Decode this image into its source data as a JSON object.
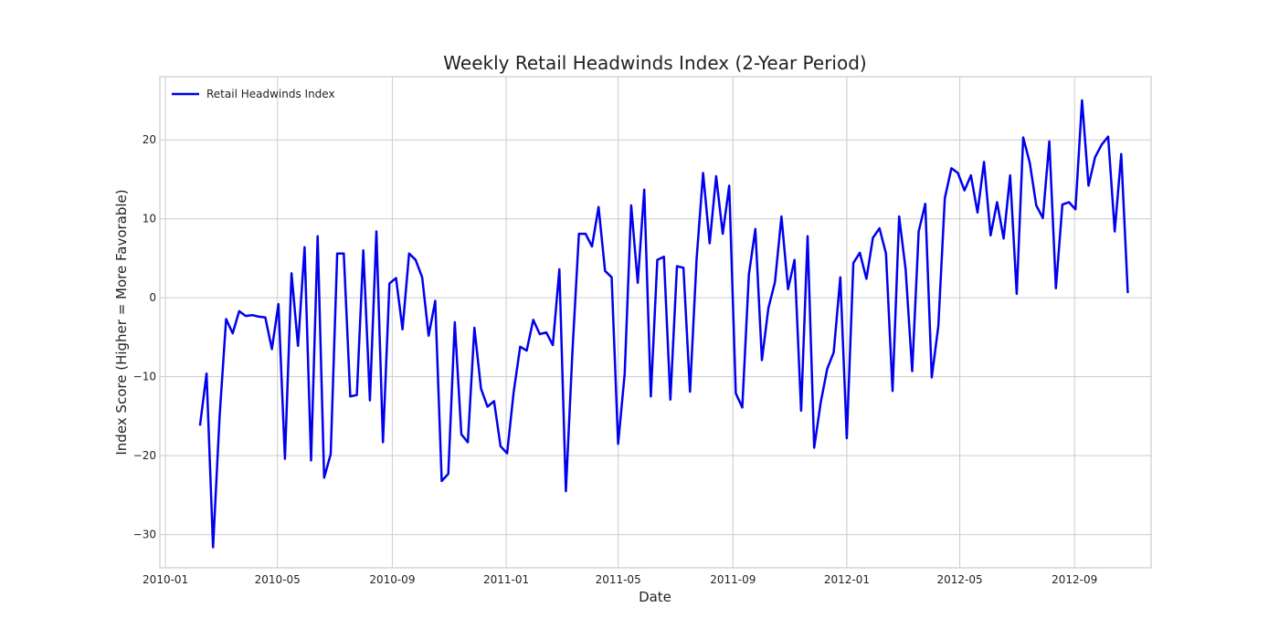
{
  "chart_data": {
    "type": "line",
    "title": "Weekly Retail Headwinds Index (2-Year Period)",
    "xlabel": "Date",
    "ylabel": "Index Score (Higher = More Favorable)",
    "xlim": [
      "2009-12-26",
      "2012-11-22"
    ],
    "ylim": [
      -34.2,
      28.0
    ],
    "x_ticks": [
      "2010-01",
      "2010-05",
      "2010-09",
      "2011-01",
      "2011-05",
      "2011-09",
      "2012-01",
      "2012-05",
      "2012-09"
    ],
    "y_ticks": [
      20,
      10,
      0,
      -10,
      -20,
      -30
    ],
    "grid": true,
    "legend": "top-left",
    "series": [
      {
        "name": "Retail Headwinds Index",
        "color": "#0000ee",
        "start_date": "2010-02-07",
        "interval_days": 7,
        "values": [
          -16.2,
          -9.6,
          -31.6,
          -15.0,
          -2.7,
          -4.5,
          -1.7,
          -2.3,
          -2.2,
          -2.4,
          -2.5,
          -6.5,
          -0.8,
          -20.4,
          3.1,
          -6.1,
          6.4,
          -20.6,
          7.8,
          -22.8,
          -19.8,
          5.6,
          5.6,
          -12.5,
          -12.3,
          6.0,
          -13.0,
          8.4,
          -18.3,
          1.8,
          2.5,
          -4.0,
          5.6,
          4.8,
          2.6,
          -4.8,
          -0.4,
          -23.2,
          -22.3,
          -3.1,
          -17.3,
          -18.3,
          -3.8,
          -11.5,
          -13.8,
          -13.1,
          -18.8,
          -19.7,
          -12.0,
          -6.2,
          -6.7,
          -2.8,
          -4.6,
          -4.4,
          -6.0,
          3.6,
          -24.5,
          -6.8,
          8.1,
          8.1,
          6.5,
          11.5,
          3.4,
          2.6,
          -18.5,
          -9.6,
          11.7,
          1.9,
          13.7,
          -12.5,
          4.8,
          5.2,
          -12.9,
          4.0,
          3.8,
          -11.9,
          4.9,
          15.8,
          6.9,
          15.4,
          8.1,
          14.2,
          -12.1,
          -13.9,
          2.9,
          8.7,
          -7.9,
          -1.3,
          2.0,
          10.3,
          1.1,
          4.8,
          -14.3,
          7.8,
          -19.0,
          -13.3,
          -9.0,
          -6.9,
          2.6,
          -17.8,
          4.4,
          5.7,
          2.4,
          7.6,
          8.8,
          5.6,
          -11.8,
          10.3,
          3.6,
          -9.3,
          8.4,
          11.9,
          -10.1,
          -3.6,
          12.6,
          16.4,
          15.8,
          13.6,
          15.5,
          10.8,
          17.2,
          7.9,
          12.1,
          7.5,
          15.5,
          0.5,
          20.3,
          17.1,
          11.7,
          10.1,
          19.8,
          1.2,
          11.8,
          12.1,
          11.2,
          25.0,
          14.2,
          17.8,
          19.4,
          20.4,
          8.4,
          18.2,
          0.6
        ]
      }
    ]
  }
}
